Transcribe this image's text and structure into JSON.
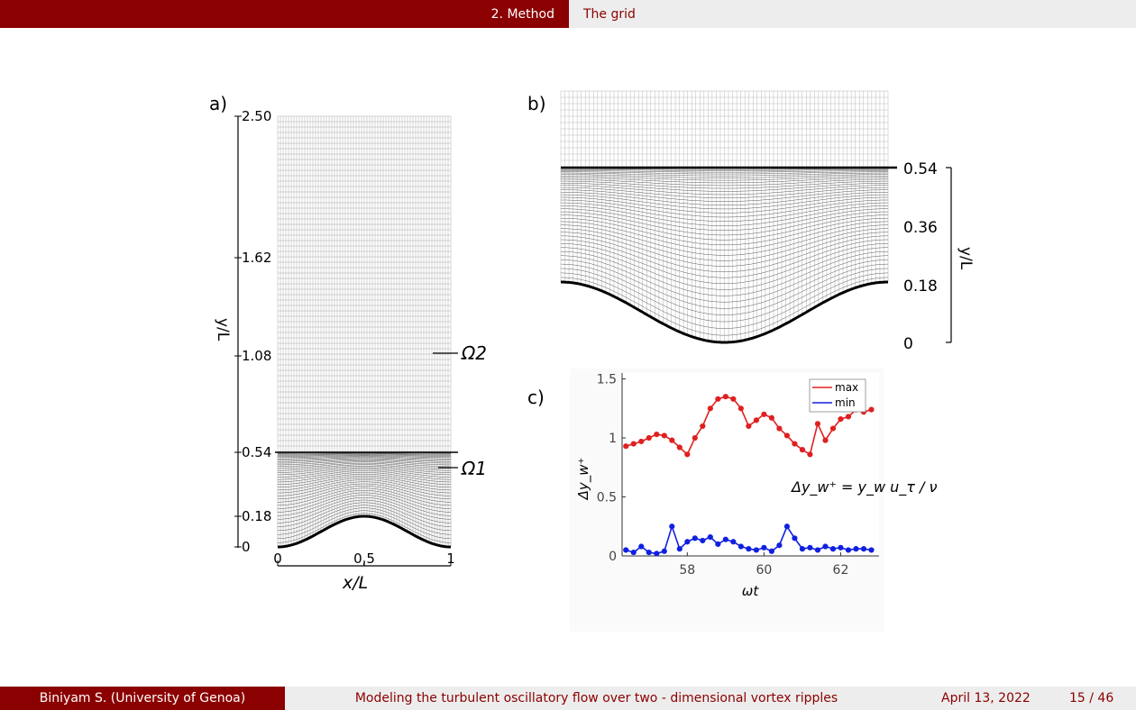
{
  "header": {
    "section": "2. Method",
    "subsection": "The grid"
  },
  "footer": {
    "author": "Biniyam S.  (University of Genoa)",
    "title": "Modeling the turbulent oscillatory flow over two - dimensional vortex ripples",
    "date": "April 13, 2022",
    "page": "15 / 46"
  },
  "panel_a": {
    "label": "a)",
    "y_ticks": [
      "2.50",
      "1.62",
      "1.08",
      "0.54",
      "0.18",
      "0"
    ],
    "y_label": "y/L",
    "x_ticks": [
      "0",
      "0,5",
      "1"
    ],
    "x_label": "x/L",
    "region_labels": [
      "Ω2",
      "Ω1"
    ]
  },
  "panel_b": {
    "label": "b)",
    "y_ticks": [
      "0.54",
      "0.36",
      "0.18",
      "0"
    ],
    "y_label": "y/L"
  },
  "chart_data": {
    "type": "line",
    "label": "c)",
    "xlabel": "ωt",
    "ylabel": "Δy_w⁺",
    "xlim": [
      56.3,
      63.0
    ],
    "ylim": [
      0,
      1.55
    ],
    "x_ticks": [
      "58",
      "60",
      "62"
    ],
    "y_ticks": [
      "0",
      "0.5",
      "1",
      "1.5"
    ],
    "legend": "top-right",
    "formula": "Δy_w⁺ = y_w u_τ / ν",
    "series": [
      {
        "name": "max",
        "color": "#e02020",
        "x": [
          56.4,
          56.6,
          56.8,
          57.0,
          57.2,
          57.4,
          57.6,
          57.8,
          58.0,
          58.2,
          58.4,
          58.6,
          58.8,
          59.0,
          59.2,
          59.4,
          59.6,
          59.8,
          60.0,
          60.2,
          60.4,
          60.6,
          60.8,
          61.0,
          61.2,
          61.4,
          61.6,
          61.8,
          62.0,
          62.2,
          62.4,
          62.6,
          62.8
        ],
        "y": [
          0.93,
          0.95,
          0.97,
          1.0,
          1.03,
          1.02,
          0.98,
          0.92,
          0.86,
          1.0,
          1.1,
          1.25,
          1.33,
          1.35,
          1.33,
          1.25,
          1.1,
          1.15,
          1.2,
          1.17,
          1.08,
          1.02,
          0.95,
          0.9,
          0.86,
          1.12,
          0.98,
          1.08,
          1.16,
          1.18,
          1.24,
          1.22,
          1.24
        ]
      },
      {
        "name": "min",
        "color": "#1020e0",
        "x": [
          56.4,
          56.6,
          56.8,
          57.0,
          57.2,
          57.4,
          57.6,
          57.8,
          58.0,
          58.2,
          58.4,
          58.6,
          58.8,
          59.0,
          59.2,
          59.4,
          59.6,
          59.8,
          60.0,
          60.2,
          60.4,
          60.6,
          60.8,
          61.0,
          61.2,
          61.4,
          61.6,
          61.8,
          62.0,
          62.2,
          62.4,
          62.6,
          62.8
        ],
        "y": [
          0.05,
          0.03,
          0.08,
          0.03,
          0.02,
          0.04,
          0.25,
          0.06,
          0.12,
          0.15,
          0.13,
          0.16,
          0.1,
          0.14,
          0.12,
          0.08,
          0.06,
          0.05,
          0.07,
          0.04,
          0.09,
          0.25,
          0.15,
          0.06,
          0.07,
          0.05,
          0.08,
          0.06,
          0.07,
          0.05,
          0.06,
          0.06,
          0.05
        ]
      }
    ]
  }
}
